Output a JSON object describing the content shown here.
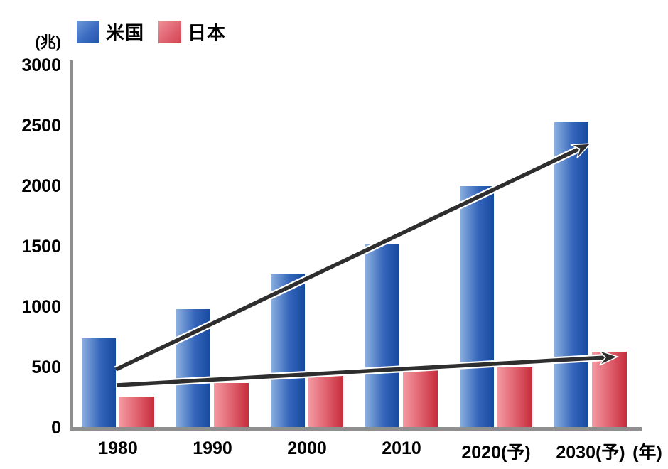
{
  "legend": {
    "items": [
      {
        "key": "us",
        "label": "米国",
        "swatch": "blue-gradient-swatch"
      },
      {
        "key": "jp",
        "label": "日本",
        "swatch": "red-gradient-swatch"
      }
    ]
  },
  "y_axis_unit": "(兆)",
  "x_axis_unit": "(年)",
  "colors": {
    "us_bar_light": "#8cb0e0",
    "us_bar_dark": "#164a9f",
    "jp_bar_light": "#f49aa2",
    "jp_bar_dark": "#c72c3b",
    "axis_gray": "#8f8f8f",
    "arrow_dark": "#2e2e2e",
    "arrow_casing": "#ffffff"
  },
  "chart_data": {
    "type": "bar",
    "title": "",
    "categories": [
      "1980",
      "1990",
      "2000",
      "2010",
      "2020(予)",
      "2030(予)"
    ],
    "series": [
      {
        "name": "米国",
        "values": [
          740,
          980,
          1270,
          1520,
          2000,
          2530
        ]
      },
      {
        "name": "日本",
        "values": [
          260,
          370,
          440,
          480,
          500,
          630
        ]
      }
    ],
    "xlabel": "(年)",
    "ylabel": "(兆)",
    "ylim": [
      0,
      3000
    ],
    "y_ticks": [
      0,
      500,
      1000,
      1500,
      2000,
      2500,
      3000
    ],
    "grid": false,
    "legend_position": "top-left",
    "annotations": [
      {
        "type": "arrow",
        "series": "米国",
        "from_category": "1980",
        "to_category": "2030(予)",
        "note": "rising trend arrow over US bars"
      },
      {
        "type": "arrow",
        "series": "日本",
        "from_category": "1980",
        "to_category": "2030(予)",
        "note": "gently rising trend arrow over Japan bars"
      }
    ]
  }
}
